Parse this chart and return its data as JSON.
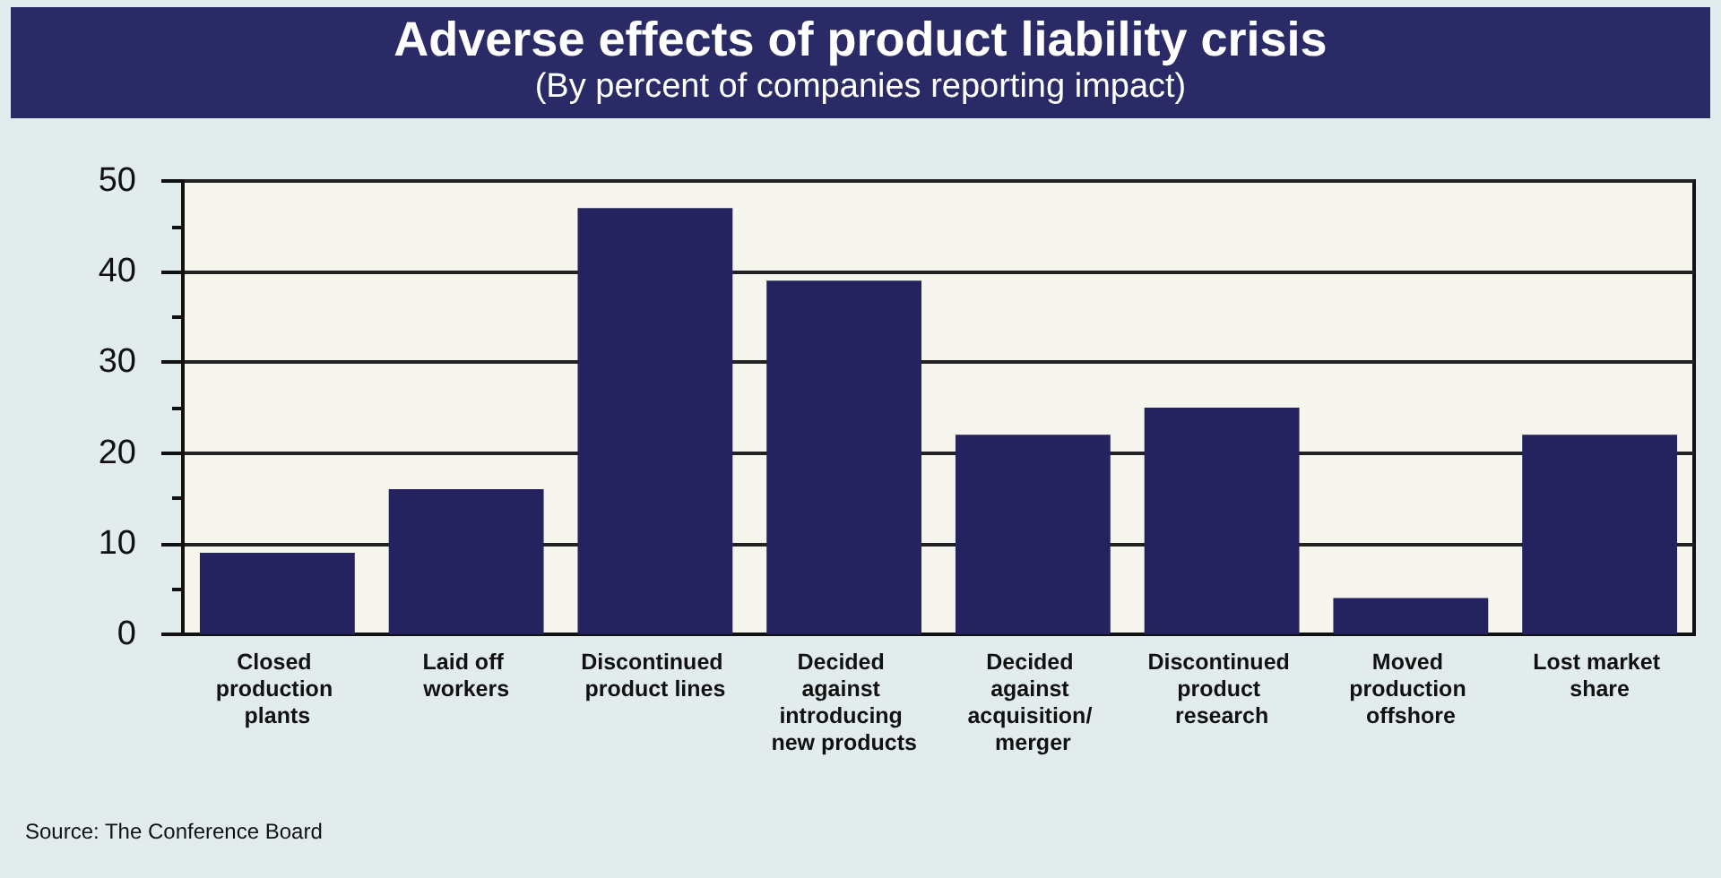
{
  "chart_data": {
    "type": "bar",
    "title": "Adverse effects of product liability crisis",
    "subtitle": "(By percent of companies reporting impact)",
    "categories": [
      "Closed production plants",
      "Laid off workers",
      "Discontinued product lines",
      "Decided against introducing new products",
      "Decided against acquisition/ merger",
      "Discontinued product research",
      "Moved production offshore",
      "Lost market share"
    ],
    "values": [
      9,
      16,
      47,
      39,
      22,
      25,
      4,
      22
    ],
    "color": "#25235f",
    "ylim": [
      0,
      50
    ],
    "yticks": [
      0,
      10,
      20,
      30,
      40,
      50
    ],
    "grid": "y",
    "annotations": [
      "Source: The Conference Board"
    ]
  }
}
